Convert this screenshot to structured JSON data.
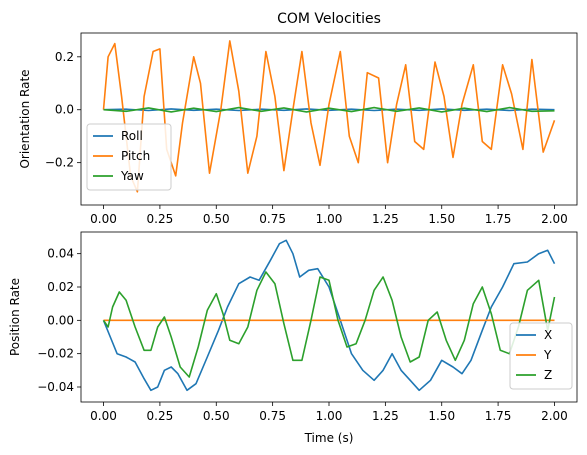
{
  "chart_data": [
    {
      "type": "line",
      "title": "COM Velocities",
      "xlabel": "",
      "ylabel": "Orientation Rate",
      "xlim": [
        -0.1,
        2.1
      ],
      "ylim": [
        -0.36,
        0.29
      ],
      "xticks": [
        "0.00",
        "0.25",
        "0.50",
        "0.75",
        "1.00",
        "1.25",
        "1.50",
        "1.75",
        "2.00"
      ],
      "xtick_values": [
        0,
        0.25,
        0.5,
        0.75,
        1.0,
        1.25,
        1.5,
        1.75,
        2.0
      ],
      "yticks": [
        "−0.2",
        "0.0",
        "0.2"
      ],
      "ytick_values": [
        -0.2,
        0.0,
        0.2
      ],
      "legend": {
        "position": "lower-left",
        "entries": [
          "Roll",
          "Pitch",
          "Yaw"
        ]
      },
      "series": [
        {
          "name": "Roll",
          "color": "#1f77b4",
          "x": [
            0,
            0.1,
            0.2,
            0.3,
            0.4,
            0.5,
            0.6,
            0.7,
            0.8,
            0.9,
            1.0,
            1.1,
            1.2,
            1.3,
            1.4,
            1.5,
            1.6,
            1.7,
            1.8,
            1.9,
            2.0
          ],
          "y": [
            0,
            0.002,
            -0.003,
            0.003,
            -0.002,
            0.002,
            -0.003,
            0.002,
            -0.002,
            0.003,
            -0.002,
            0.002,
            -0.003,
            0.002,
            -0.002,
            0.003,
            -0.002,
            0.002,
            -0.003,
            0.002,
            0
          ]
        },
        {
          "name": "Pitch",
          "color": "#ff7f0e",
          "x": [
            0.0,
            0.02,
            0.05,
            0.08,
            0.12,
            0.15,
            0.18,
            0.22,
            0.25,
            0.28,
            0.32,
            0.35,
            0.4,
            0.43,
            0.47,
            0.52,
            0.56,
            0.6,
            0.64,
            0.68,
            0.72,
            0.76,
            0.8,
            0.84,
            0.88,
            0.92,
            0.96,
            1.0,
            1.05,
            1.09,
            1.13,
            1.17,
            1.22,
            1.26,
            1.3,
            1.34,
            1.38,
            1.42,
            1.47,
            1.51,
            1.55,
            1.59,
            1.64,
            1.68,
            1.72,
            1.77,
            1.81,
            1.86,
            1.9,
            1.95,
            2.0
          ],
          "y": [
            0.0,
            0.2,
            0.25,
            0.05,
            -0.25,
            -0.31,
            0.05,
            0.22,
            0.23,
            -0.15,
            -0.25,
            -0.05,
            0.2,
            0.1,
            -0.24,
            0.0,
            0.26,
            0.07,
            -0.24,
            -0.1,
            0.22,
            0.05,
            -0.23,
            0.0,
            0.22,
            -0.05,
            -0.21,
            0.02,
            0.22,
            -0.1,
            -0.2,
            0.14,
            0.12,
            -0.2,
            0.02,
            0.17,
            -0.12,
            -0.15,
            0.18,
            0.05,
            -0.18,
            0.02,
            0.17,
            -0.12,
            -0.15,
            0.17,
            0.06,
            -0.15,
            0.19,
            -0.16,
            -0.04
          ]
        },
        {
          "name": "Yaw",
          "color": "#2ca02c",
          "x": [
            0,
            0.1,
            0.2,
            0.3,
            0.4,
            0.5,
            0.6,
            0.7,
            0.8,
            0.9,
            1.0,
            1.1,
            1.2,
            1.3,
            1.4,
            1.5,
            1.6,
            1.7,
            1.8,
            1.9,
            2.0
          ],
          "y": [
            0,
            -0.006,
            0.007,
            -0.008,
            0.006,
            -0.007,
            0.008,
            -0.006,
            0.007,
            -0.008,
            0.006,
            -0.007,
            0.008,
            -0.006,
            0.007,
            -0.008,
            0.006,
            -0.007,
            0.008,
            -0.006,
            -0.004
          ]
        }
      ]
    },
    {
      "type": "line",
      "title": "",
      "xlabel": "Time (s)",
      "ylabel": "Position Rate",
      "xlim": [
        -0.1,
        2.1
      ],
      "ylim": [
        -0.049,
        0.053
      ],
      "xticks": [
        "0.00",
        "0.25",
        "0.50",
        "0.75",
        "1.00",
        "1.25",
        "1.50",
        "1.75",
        "2.00"
      ],
      "xtick_values": [
        0,
        0.25,
        0.5,
        0.75,
        1.0,
        1.25,
        1.5,
        1.75,
        2.0
      ],
      "yticks": [
        "−0.04",
        "−0.02",
        "0.00",
        "0.02",
        "0.04"
      ],
      "ytick_values": [
        -0.04,
        -0.02,
        0.0,
        0.02,
        0.04
      ],
      "legend": {
        "position": "lower-right",
        "entries": [
          "X",
          "Y",
          "Z"
        ]
      },
      "series": [
        {
          "name": "X",
          "color": "#1f77b4",
          "x": [
            0.0,
            0.03,
            0.06,
            0.1,
            0.14,
            0.18,
            0.21,
            0.24,
            0.27,
            0.3,
            0.33,
            0.37,
            0.41,
            0.46,
            0.51,
            0.55,
            0.6,
            0.65,
            0.69,
            0.74,
            0.78,
            0.81,
            0.84,
            0.87,
            0.91,
            0.95,
            1.0,
            1.05,
            1.1,
            1.15,
            1.2,
            1.24,
            1.28,
            1.32,
            1.36,
            1.4,
            1.45,
            1.5,
            1.55,
            1.59,
            1.63,
            1.68,
            1.72,
            1.77,
            1.82,
            1.88,
            1.93,
            1.97,
            2.0
          ],
          "y": [
            0.0,
            -0.01,
            -0.02,
            -0.022,
            -0.025,
            -0.035,
            -0.042,
            -0.04,
            -0.03,
            -0.028,
            -0.032,
            -0.042,
            -0.038,
            -0.022,
            -0.006,
            0.008,
            0.022,
            0.026,
            0.024,
            0.036,
            0.046,
            0.048,
            0.04,
            0.026,
            0.03,
            0.031,
            0.02,
            0.0,
            -0.02,
            -0.03,
            -0.036,
            -0.03,
            -0.02,
            -0.03,
            -0.036,
            -0.042,
            -0.036,
            -0.024,
            -0.028,
            -0.032,
            -0.024,
            -0.006,
            0.008,
            0.02,
            0.034,
            0.035,
            0.04,
            0.042,
            0.034
          ]
        },
        {
          "name": "Y",
          "color": "#ff7f0e",
          "x": [
            0,
            0.2,
            0.4,
            0.6,
            0.8,
            1.0,
            1.2,
            1.4,
            1.6,
            1.8,
            2.0
          ],
          "y": [
            0,
            0,
            0,
            0,
            0,
            0,
            0,
            0,
            0,
            0,
            0
          ]
        },
        {
          "name": "Z",
          "color": "#2ca02c",
          "x": [
            0.0,
            0.02,
            0.04,
            0.07,
            0.1,
            0.14,
            0.18,
            0.21,
            0.24,
            0.27,
            0.3,
            0.34,
            0.38,
            0.42,
            0.46,
            0.5,
            0.53,
            0.56,
            0.6,
            0.64,
            0.68,
            0.72,
            0.76,
            0.8,
            0.84,
            0.88,
            0.92,
            0.96,
            1.0,
            1.04,
            1.08,
            1.12,
            1.16,
            1.2,
            1.24,
            1.28,
            1.32,
            1.36,
            1.4,
            1.44,
            1.48,
            1.52,
            1.56,
            1.6,
            1.64,
            1.68,
            1.72,
            1.76,
            1.8,
            1.84,
            1.88,
            1.93,
            1.97,
            2.0
          ],
          "y": [
            0.0,
            -0.004,
            0.008,
            0.017,
            0.012,
            -0.004,
            -0.018,
            -0.018,
            -0.004,
            0.002,
            -0.01,
            -0.028,
            -0.034,
            -0.016,
            0.006,
            0.016,
            0.004,
            -0.012,
            -0.014,
            -0.004,
            0.018,
            0.029,
            0.022,
            -0.002,
            -0.024,
            -0.024,
            0.0,
            0.026,
            0.024,
            0.0,
            -0.016,
            -0.014,
            0.0,
            0.018,
            0.026,
            0.012,
            -0.01,
            -0.025,
            -0.022,
            0.0,
            0.005,
            -0.012,
            -0.024,
            -0.012,
            0.01,
            0.02,
            0.004,
            -0.018,
            -0.02,
            -0.004,
            0.018,
            0.024,
            -0.006,
            0.014
          ]
        }
      ]
    }
  ]
}
